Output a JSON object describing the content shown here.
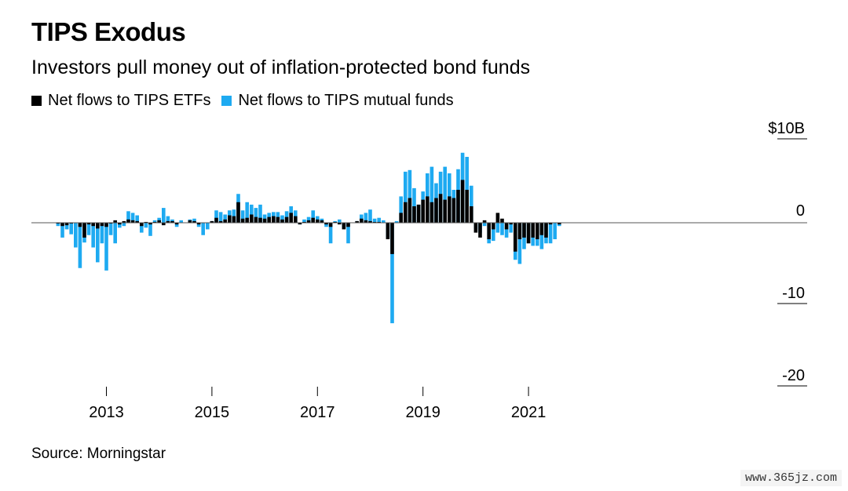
{
  "title": "TIPS Exodus",
  "subtitle": "Investors pull money out of inflation-protected bond funds",
  "source": "Source: Morningstar",
  "watermark": "www.365jz.com",
  "chart_data": {
    "type": "bar",
    "stacked": true,
    "series": [
      {
        "name": "Net flows to TIPS ETFs",
        "color": "#000000",
        "values": [
          0.0,
          -0.1,
          -0.4,
          -0.3,
          -0.1,
          0.0,
          -0.5,
          -1.8,
          -0.2,
          -0.4,
          -0.7,
          -0.4,
          -0.5,
          -0.1,
          0.3,
          -0.2,
          0.2,
          0.4,
          0.3,
          0.2,
          -0.4,
          0.1,
          -0.2,
          0.1,
          0.3,
          -0.3,
          0.2,
          0.2,
          -0.2,
          0.0,
          0.0,
          0.3,
          0.2,
          -0.2,
          0.0,
          0.0,
          0.2,
          0.6,
          0.2,
          0.4,
          0.9,
          0.8,
          2.5,
          0.5,
          0.6,
          1.0,
          0.7,
          0.6,
          0.5,
          0.7,
          0.8,
          0.7,
          0.4,
          0.7,
          1.2,
          0.8,
          -0.2,
          0.1,
          0.3,
          0.6,
          0.4,
          0.3,
          -0.2,
          -0.5,
          0.1,
          -0.2,
          -0.8,
          -0.5,
          0.0,
          0.2,
          0.5,
          0.3,
          0.2,
          0.1,
          0.1,
          0.0,
          -2.0,
          -3.8,
          0.0,
          1.2,
          2.5,
          3.0,
          2.0,
          2.2,
          2.8,
          3.2,
          2.5,
          3.0,
          3.5,
          2.8,
          3.2,
          3.0,
          4.0,
          5.2,
          4.0,
          2.0,
          -1.2,
          -1.8,
          0.3,
          -2.0,
          -0.8,
          1.2,
          0.5,
          -0.8,
          -0.2,
          -3.5,
          -2.0,
          -1.8,
          -2.5,
          -1.8,
          -2.0,
          -1.5,
          -1.8,
          -0.2,
          0.0,
          -0.2
        ],
        "totals": [
          0.0,
          -0.4,
          -1.8,
          -0.8,
          -1.4,
          -3.0,
          -5.5,
          -2.4,
          -1.5,
          -3.0,
          -4.8,
          -2.5,
          -5.8,
          -1.5,
          -2.5,
          -0.6,
          -0.4,
          1.4,
          1.2,
          0.9,
          -1.2,
          -0.6,
          -1.6,
          0.3,
          0.6,
          1.8,
          0.8,
          0.4,
          -0.5,
          0.3,
          0.0,
          0.4,
          0.5,
          -0.5,
          -1.5,
          -0.8,
          0.2,
          1.5,
          1.3,
          1.0,
          1.5,
          1.6,
          3.5,
          1.5,
          2.5,
          2.2,
          1.8,
          2.2,
          1.0,
          1.2,
          1.3,
          1.3,
          0.9,
          1.4,
          2.0,
          1.5,
          -0.2,
          0.4,
          0.7,
          1.5,
          0.8,
          0.5,
          -0.5,
          -2.5,
          0.2,
          0.4,
          -0.6,
          -2.5,
          0.0,
          0.2,
          1.0,
          1.2,
          1.6,
          0.5,
          0.6,
          0.3,
          -1.8,
          -12.2,
          0.2,
          3.2,
          6.2,
          6.4,
          4.2,
          2.2,
          3.8,
          6.0,
          6.8,
          4.8,
          6.2,
          6.8,
          6.0,
          4.0,
          6.5,
          8.5,
          8.0,
          4.5,
          -0.8,
          -1.2,
          -0.4,
          -2.5,
          -2.2,
          -1.2,
          -1.5,
          -1.8,
          -1.2,
          -4.5,
          -5.0,
          -3.2,
          -2.5,
          -2.8,
          -2.8,
          -3.2,
          -2.5,
          -2.5,
          -2.0,
          -0.4
        ]
      },
      {
        "name": "Net flows to TIPS mutual funds",
        "color": "#1EAAF1"
      }
    ],
    "start": "2012-01",
    "frequency": "monthly",
    "x_ticks": [
      {
        "label": "2013",
        "date": "2013-01"
      },
      {
        "label": "2015",
        "date": "2015-01"
      },
      {
        "label": "2017",
        "date": "2017-01"
      },
      {
        "label": "2019",
        "date": "2019-01"
      },
      {
        "label": "2021",
        "date": "2021-01"
      }
    ],
    "y_ticks": [
      {
        "label": "$10B",
        "value": 10
      },
      {
        "label": "0",
        "value": 0
      },
      {
        "label": "-10",
        "value": -10
      },
      {
        "label": "-20",
        "value": -20
      }
    ],
    "ylim": [
      -20,
      10
    ],
    "xlabel": "",
    "ylabel": ""
  }
}
